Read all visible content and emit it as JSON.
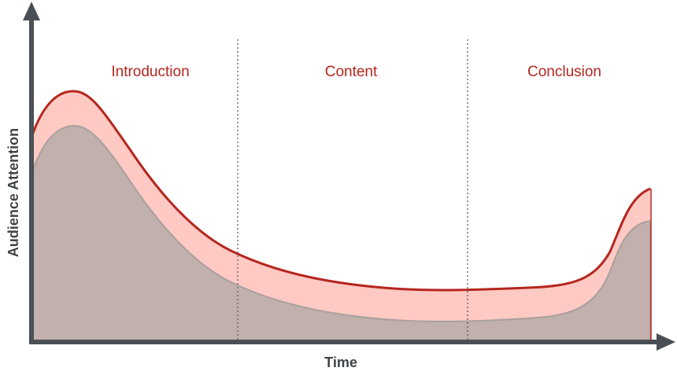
{
  "axes": {
    "x_label": "Time",
    "y_label": "Audience Attention"
  },
  "sections": [
    {
      "label": "Introduction"
    },
    {
      "label": "Content"
    },
    {
      "label": "Conclusion"
    }
  ]
}
